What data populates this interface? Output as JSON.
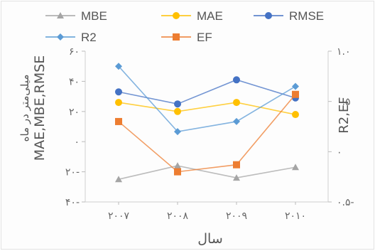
{
  "chart_data": {
    "type": "line",
    "categories": [
      "۲۰۰۷",
      "۲۰۰۸",
      "۲۰۰۹",
      "۲۰۱۰"
    ],
    "left_axis": {
      "label": "MAE,MBE,RMSE",
      "label_sub": "میلی‌متر در ماه",
      "ylim": [
        -40,
        60
      ],
      "ticks": [
        {
          "value": 60,
          "label": "۶۰"
        },
        {
          "value": 40,
          "label": "۴۰"
        },
        {
          "value": 20,
          "label": "۲۰"
        },
        {
          "value": 0,
          "label": "۰"
        },
        {
          "value": -20,
          "label": "۲۰-"
        },
        {
          "value": -40,
          "label": "۴۰-"
        }
      ]
    },
    "right_axis": {
      "label": "R2,EF",
      "ylim": [
        -0.5,
        1.0
      ],
      "ticks": [
        {
          "value": 1.0,
          "label": "۱.۰"
        },
        {
          "value": 0.5,
          "label": "۰.۵"
        },
        {
          "value": 0.0,
          "label": "۰"
        },
        {
          "value": -0.5,
          "label": "۰.۵-"
        }
      ]
    },
    "xlabel": "سال",
    "grid": false,
    "legend_position": "top",
    "series": [
      {
        "name": "MBE",
        "axis": "left",
        "values": [
          -25,
          -16,
          -24,
          -17
        ],
        "color": "#a5a5a5",
        "marker": "triangle"
      },
      {
        "name": "MAE",
        "axis": "left",
        "values": [
          26,
          20,
          26,
          18
        ],
        "color": "#ffc000",
        "marker": "circle"
      },
      {
        "name": "RMSE",
        "axis": "left",
        "values": [
          33,
          25,
          41,
          29
        ],
        "color": "#4472c4",
        "marker": "circle"
      },
      {
        "name": "R2",
        "axis": "right",
        "values": [
          0.85,
          0.2,
          0.3,
          0.65
        ],
        "color": "#5b9bd5",
        "marker": "diamond"
      },
      {
        "name": "EF",
        "axis": "right",
        "values": [
          0.3,
          -0.2,
          -0.13,
          0.57
        ],
        "color": "#ed7d31",
        "marker": "square"
      }
    ]
  }
}
